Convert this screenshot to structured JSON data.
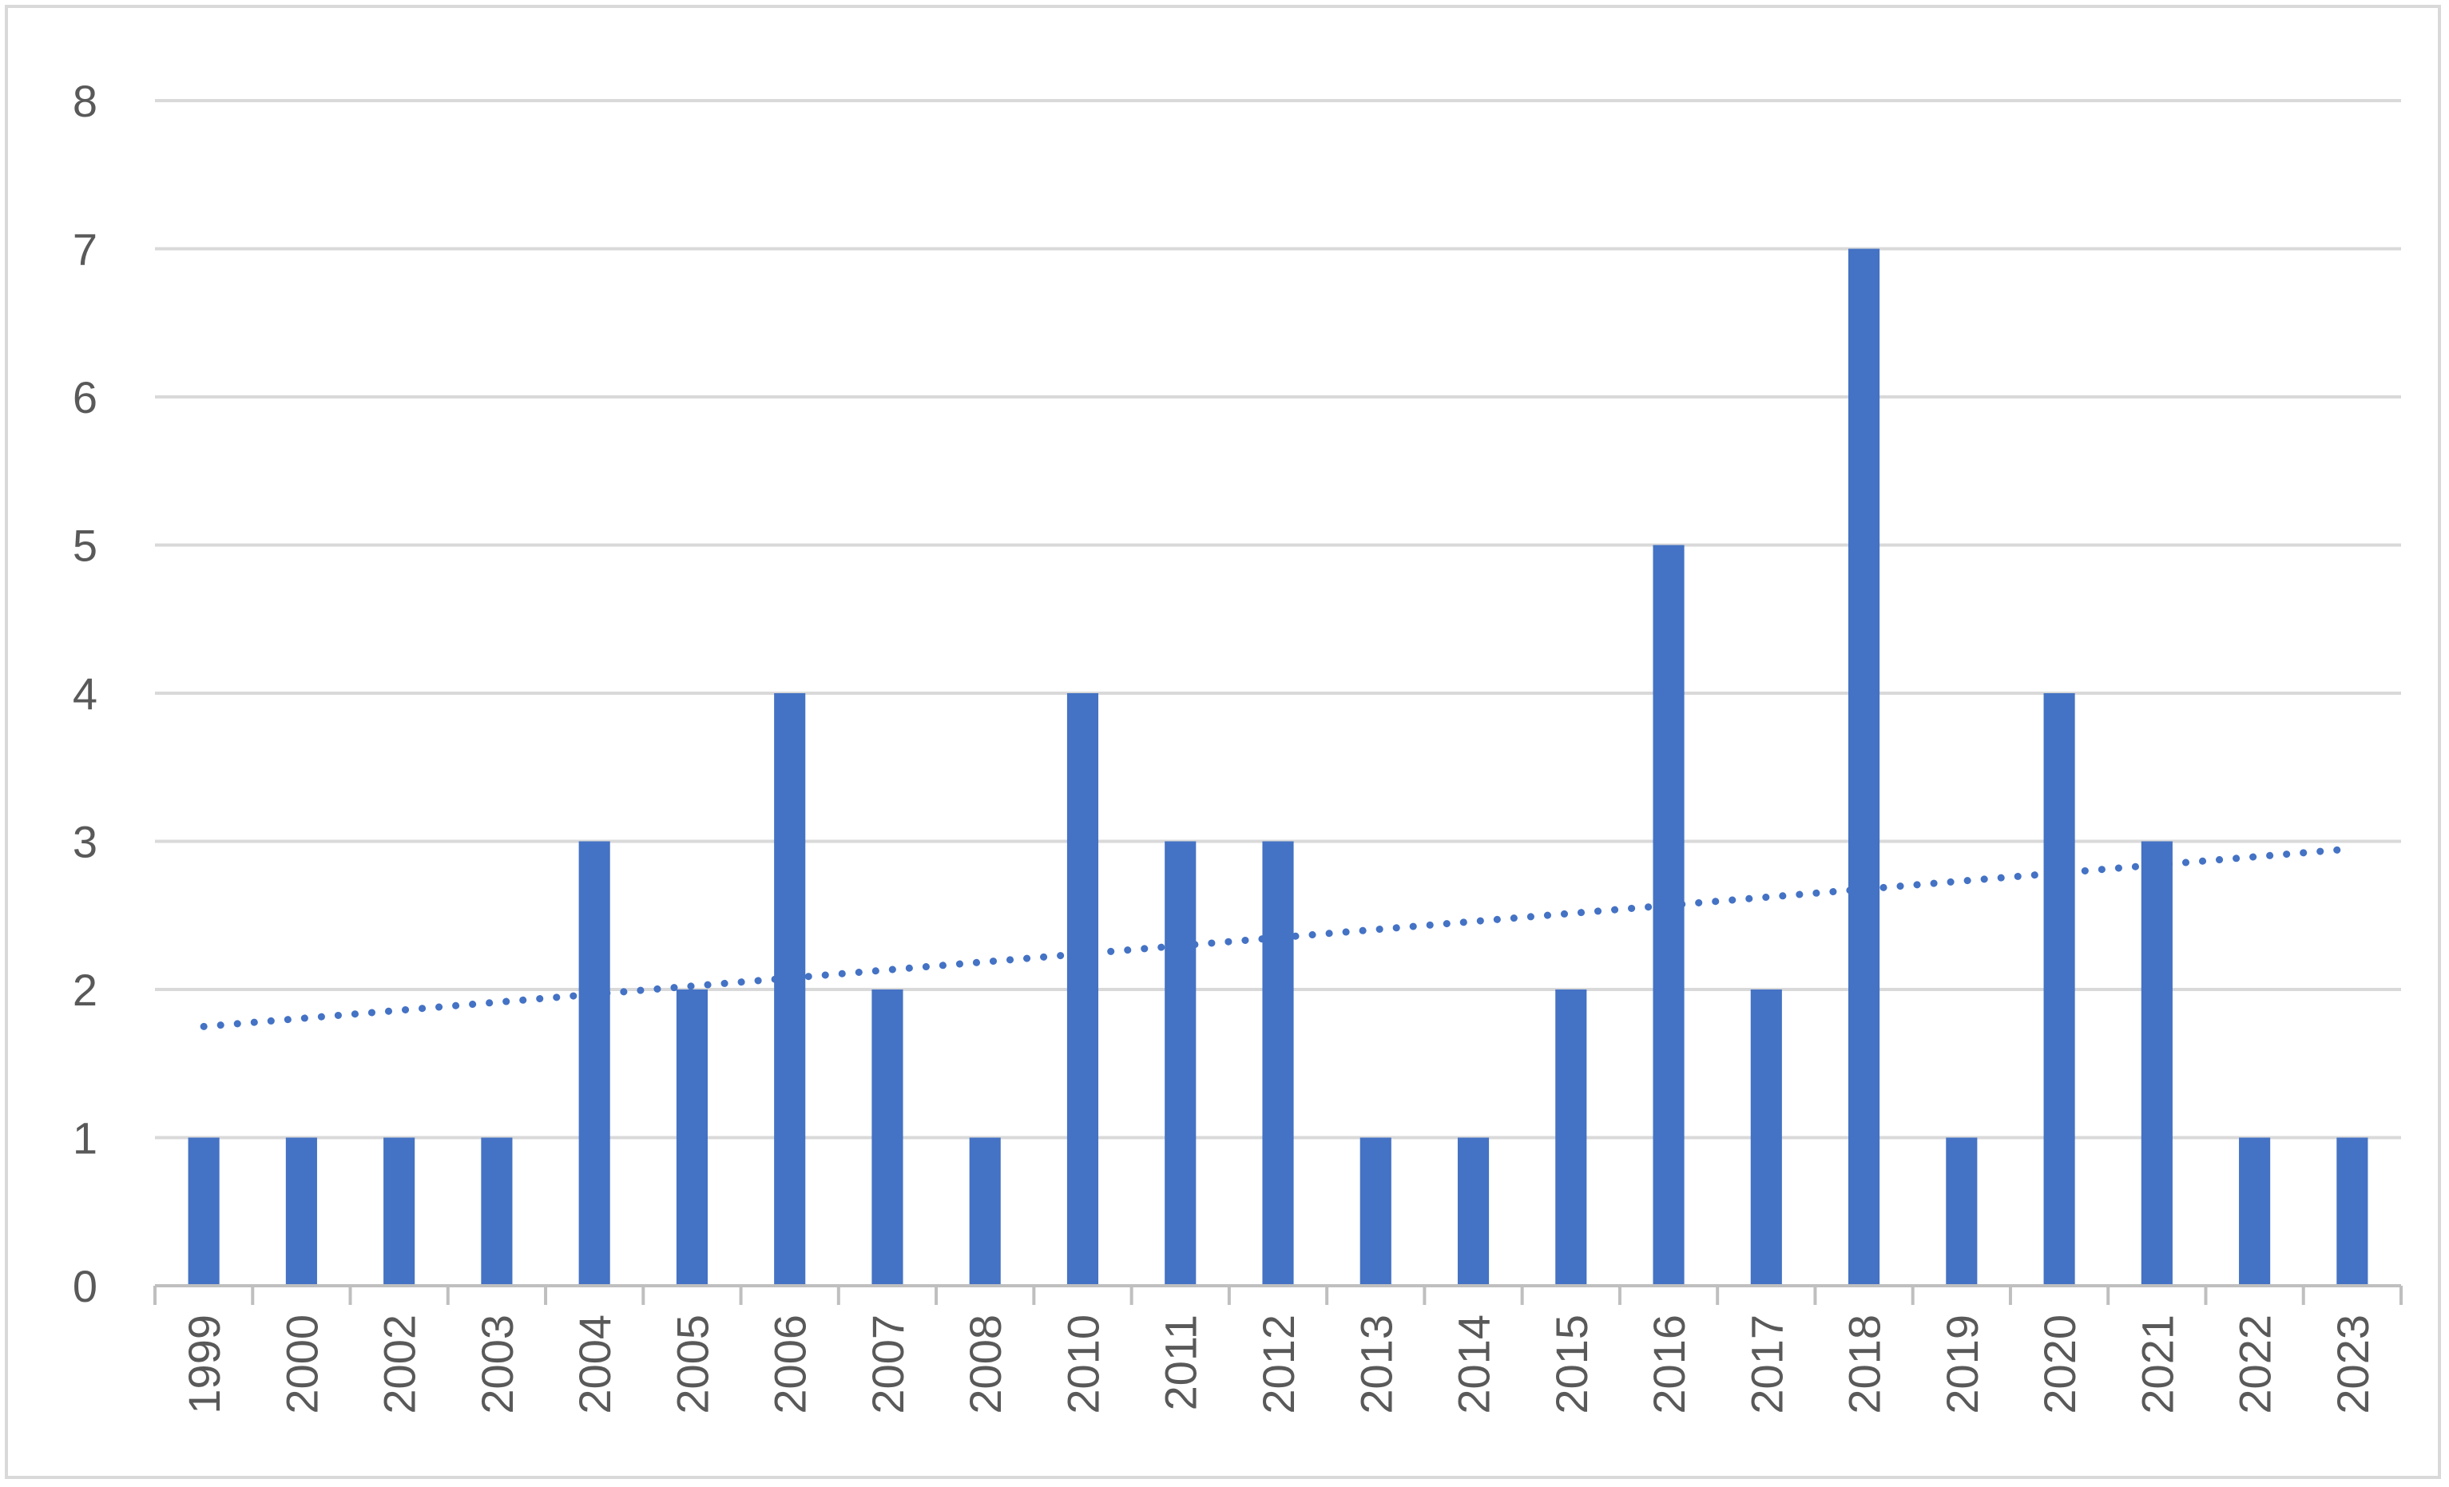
{
  "chart_data": {
    "type": "bar",
    "title": "",
    "xlabel": "",
    "ylabel": "",
    "categories": [
      "1999",
      "2000",
      "2002",
      "2003",
      "2004",
      "2005",
      "2006",
      "2007",
      "2008",
      "2010",
      "2011",
      "2012",
      "2013",
      "2014",
      "2015",
      "2016",
      "2017",
      "2018",
      "2019",
      "2020",
      "2021",
      "2022",
      "2023"
    ],
    "series": [
      {
        "values": [
          1,
          1,
          1,
          1,
          3,
          2,
          4,
          2,
          1,
          4,
          3,
          3,
          1,
          1,
          2,
          5,
          2,
          7,
          1,
          4,
          3,
          1,
          1
        ]
      }
    ],
    "trendline": {
      "type": "linear",
      "style": "dotted",
      "start_value": 1.75,
      "end_value": 2.95
    },
    "ylim": [
      0,
      8
    ],
    "yticks": [
      0,
      1,
      2,
      3,
      4,
      5,
      6,
      7,
      8
    ],
    "grid": true,
    "legend": "none",
    "colors": {
      "bar": "#4472C4",
      "trendline": "#4472C4",
      "grid": "#d9d9d9",
      "axis": "#bfbfbf",
      "text": "#595959"
    }
  }
}
